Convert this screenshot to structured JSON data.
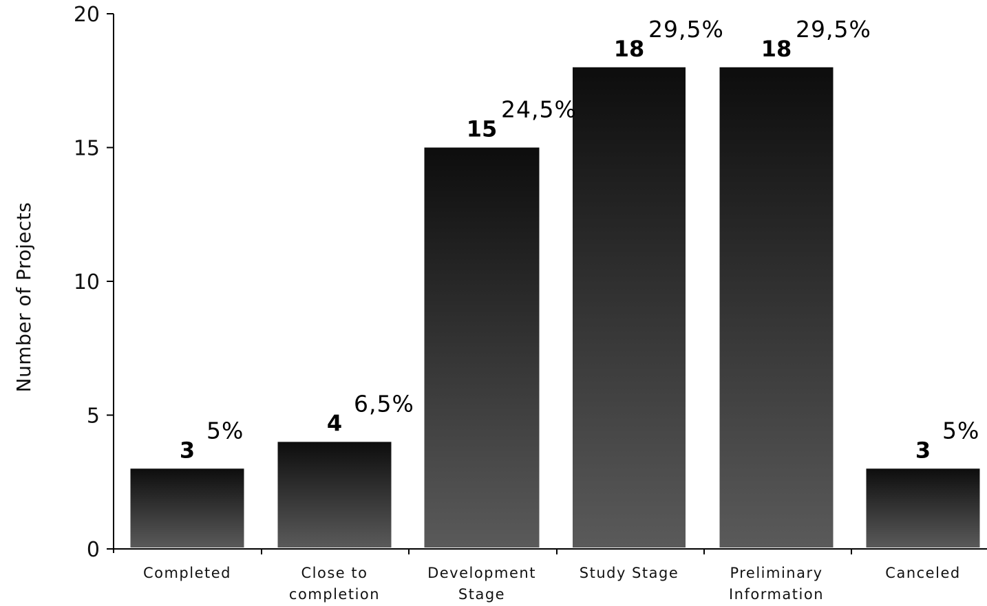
{
  "chart_data": {
    "type": "bar",
    "categories": [
      [
        "Completed"
      ],
      [
        "Close to",
        "completion"
      ],
      [
        "Development",
        "Stage"
      ],
      [
        "Study Stage"
      ],
      [
        "Preliminary",
        "Information"
      ],
      [
        "Canceled"
      ]
    ],
    "values": [
      3,
      4,
      15,
      18,
      18,
      3
    ],
    "value_labels": [
      "3",
      "4",
      "15",
      "18",
      "18",
      "3"
    ],
    "percent_labels": [
      "5%",
      "6,5%",
      "24,5%",
      "29,5%",
      "29,5%",
      "5%"
    ],
    "ylabel": "Number of Projects",
    "ylim": [
      0,
      20
    ],
    "yticks": [
      0,
      5,
      10,
      15,
      20
    ],
    "grid": false,
    "bar_gradient": [
      "#0d0d0d",
      "#5a5a5a"
    ]
  }
}
